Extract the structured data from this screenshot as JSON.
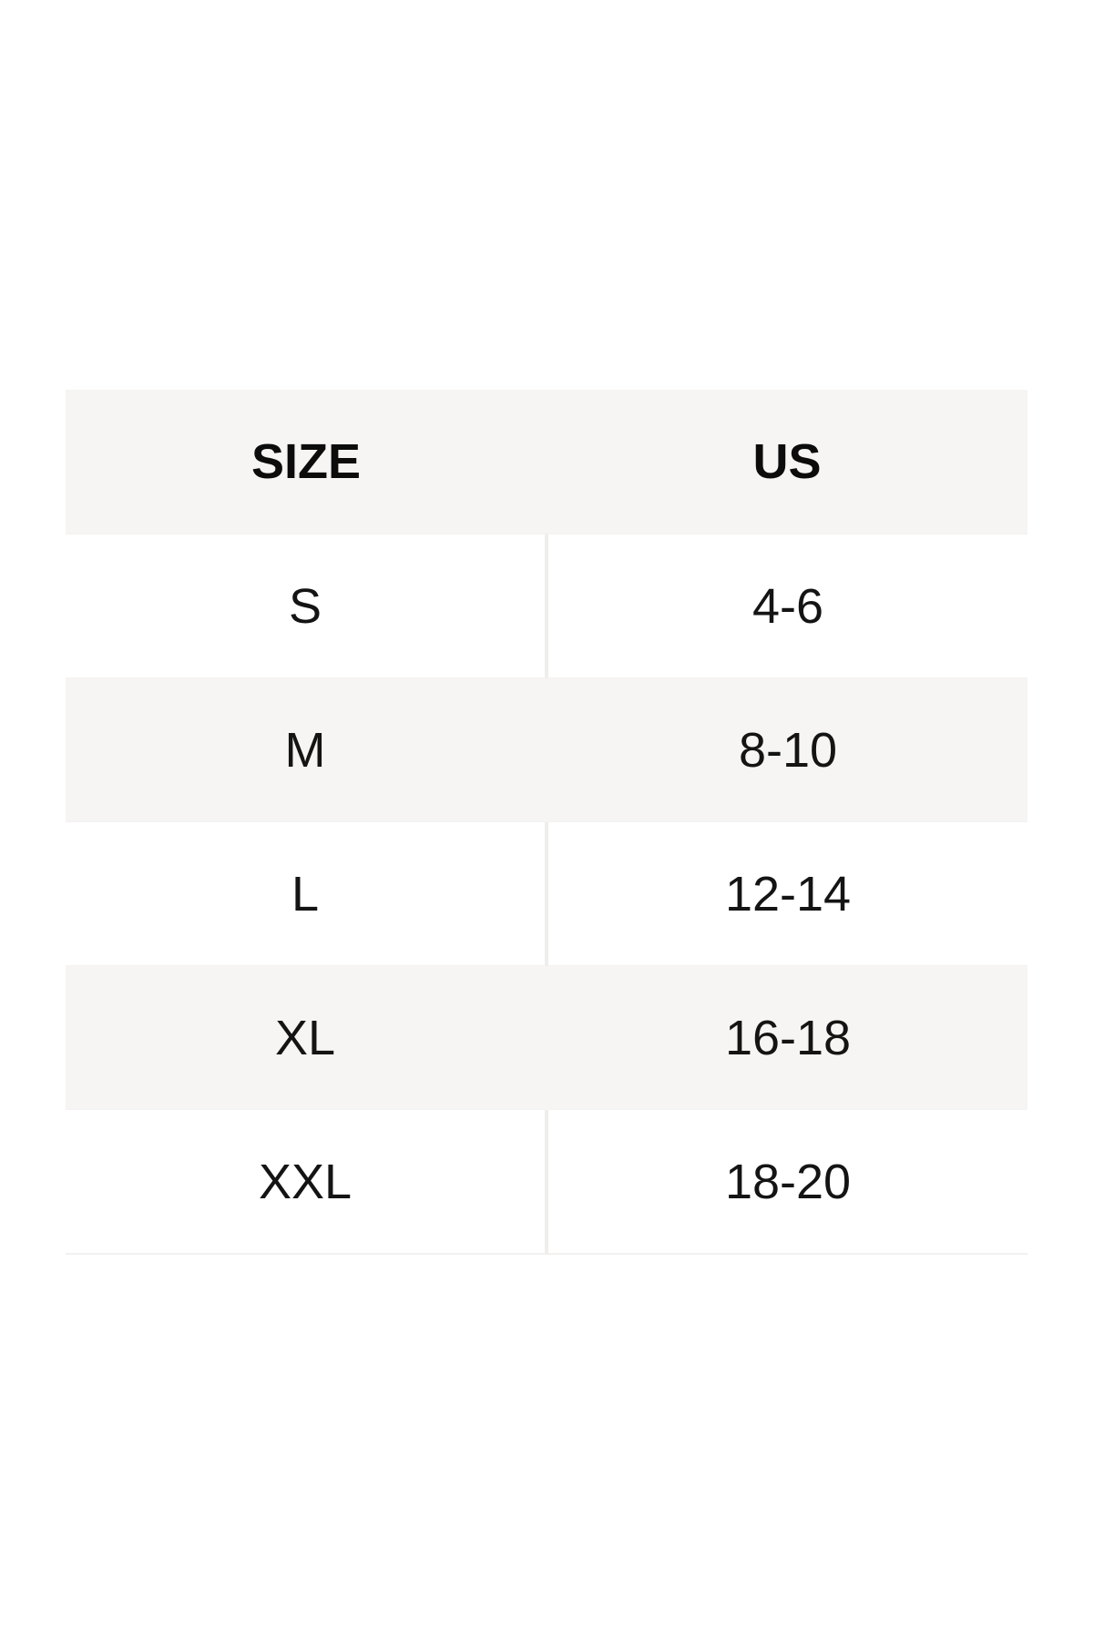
{
  "size_chart": {
    "columns": {
      "size_label": "SIZE",
      "us_label": "US"
    },
    "rows": [
      {
        "size": "S",
        "us": "4-6"
      },
      {
        "size": "M",
        "us": "8-10"
      },
      {
        "size": "L",
        "us": "12-14"
      },
      {
        "size": "XL",
        "us": "16-18"
      },
      {
        "size": "XXL",
        "us": "18-20"
      }
    ]
  },
  "colors": {
    "page_background": "#ffffff",
    "header_row_background": "#f6f5f3",
    "alt_row_background": "#f6f5f3",
    "white_row_background": "#ffffff",
    "column_divider": "#f0eeec",
    "text": "#141414"
  }
}
